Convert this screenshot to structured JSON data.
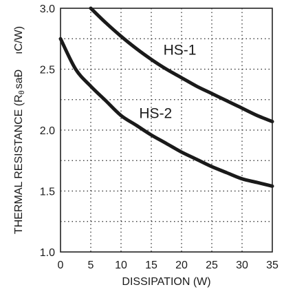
{
  "chart_data": {
    "type": "line",
    "xlabel": "DISSIPATION (W)",
    "ylabel": "THERMAL RESISTANCE (R",
    "ylabel_sub": "θ",
    "ylabel_rest": "saÐ",
    "ylabel_unit": "ıC/W)",
    "xlim": [
      0,
      35
    ],
    "ylim": [
      1.0,
      3.0
    ],
    "x_ticks": [
      0,
      5,
      10,
      15,
      20,
      25,
      30,
      35
    ],
    "x_tick_labels": [
      "0",
      "5",
      "10",
      "15",
      "20",
      "25",
      "30",
      "35"
    ],
    "y_ticks": [
      1.0,
      1.5,
      2.0,
      2.5,
      3.0
    ],
    "y_tick_labels": [
      "1.0",
      "1.5",
      "2.0",
      "2.5",
      "3.0"
    ],
    "y_grid_minor": [
      1.25,
      1.75,
      2.25,
      2.75
    ],
    "grid": true,
    "series": [
      {
        "name": "HS-1",
        "x": [
          5,
          7.5,
          10,
          12.5,
          15,
          17.5,
          20,
          22.5,
          25,
          27.5,
          30,
          32.5,
          35
        ],
        "y": [
          3.0,
          2.88,
          2.77,
          2.67,
          2.58,
          2.5,
          2.43,
          2.36,
          2.3,
          2.24,
          2.18,
          2.12,
          2.07
        ]
      },
      {
        "name": "HS-2",
        "x": [
          0,
          2.5,
          5,
          7.5,
          10,
          12.5,
          15,
          17.5,
          20,
          22.5,
          25,
          27.5,
          30,
          32.5,
          35
        ],
        "y": [
          2.75,
          2.5,
          2.36,
          2.24,
          2.12,
          2.04,
          1.96,
          1.89,
          1.82,
          1.76,
          1.7,
          1.65,
          1.6,
          1.57,
          1.54
        ]
      }
    ]
  }
}
